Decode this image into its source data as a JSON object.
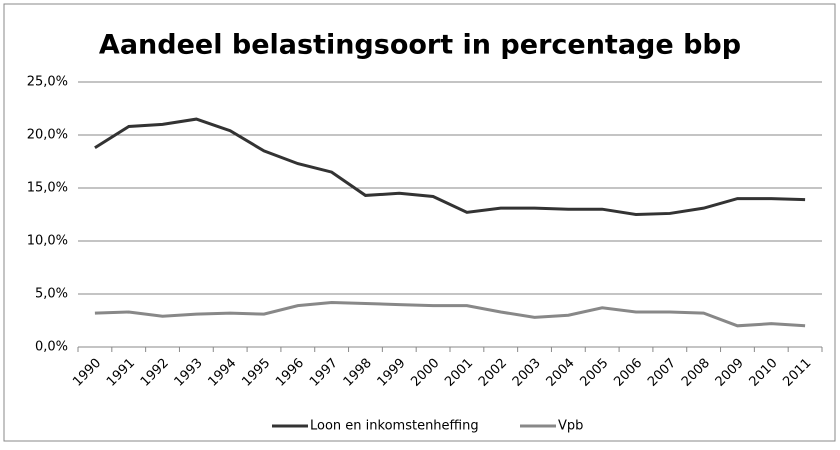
{
  "chart_data": {
    "type": "line",
    "title": "Aandeel belastingsoort in percentage bbp",
    "categories": [
      "1990",
      "1991",
      "1992",
      "1993",
      "1994",
      "1995",
      "1996",
      "1997",
      "1998",
      "1999",
      "2000",
      "2001",
      "2002",
      "2003",
      "2004",
      "2005",
      "2006",
      "2007",
      "2008",
      "2009",
      "2010",
      "2011"
    ],
    "series": [
      {
        "name": "Loon en inkomstenheffing",
        "color": "#333333",
        "values": [
          18.8,
          20.8,
          21.0,
          21.5,
          20.4,
          18.5,
          17.3,
          16.5,
          14.3,
          14.5,
          14.2,
          12.7,
          13.1,
          13.1,
          13.0,
          13.0,
          12.5,
          12.6,
          13.1,
          14.0,
          14.0,
          13.9
        ]
      },
      {
        "name": "Vpb",
        "color": "#888888",
        "values": [
          3.2,
          3.3,
          2.9,
          3.1,
          3.2,
          3.1,
          3.9,
          4.2,
          4.1,
          4.0,
          3.9,
          3.9,
          3.3,
          2.8,
          3.0,
          3.7,
          3.3,
          3.3,
          3.2,
          2.0,
          2.2,
          2.0
        ]
      }
    ],
    "ylim": [
      0,
      25
    ],
    "yticks": [
      {
        "value": 0,
        "label": "0,0%"
      },
      {
        "value": 5,
        "label": "5,0%"
      },
      {
        "value": 10,
        "label": "10,0%"
      },
      {
        "value": 15,
        "label": "15,0%"
      },
      {
        "value": 20,
        "label": "20,0%"
      },
      {
        "value": 25,
        "label": "25,0%"
      }
    ],
    "grid": true,
    "legend": "bottom"
  }
}
